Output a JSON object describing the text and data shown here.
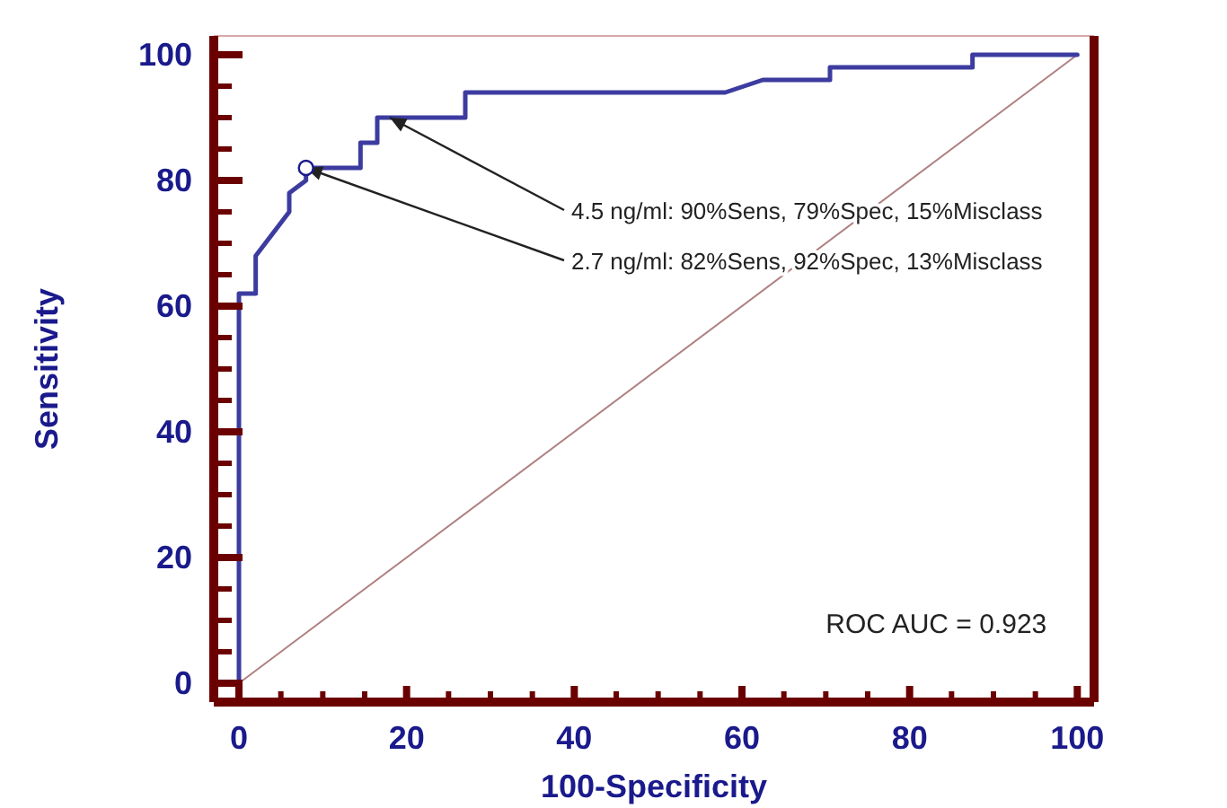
{
  "chart_data": {
    "type": "line",
    "xlabel": "100-Specificity",
    "ylabel": "Sensitivity",
    "xlim": [
      -3,
      102
    ],
    "ylim": [
      -3,
      103
    ],
    "xticks": [
      0,
      {
        "value": 5,
        "label": null
      },
      {
        "value": 10,
        "label": null
      },
      {
        "value": 15,
        "label": null
      },
      20,
      {
        "value": 25,
        "label": null
      },
      {
        "value": 30,
        "label": null
      },
      {
        "value": 35,
        "label": null
      },
      40,
      {
        "value": 45,
        "label": null
      },
      {
        "value": 50,
        "label": null
      },
      {
        "value": 55,
        "label": null
      },
      60,
      {
        "value": 65,
        "label": null
      },
      {
        "value": 70,
        "label": null
      },
      {
        "value": 75,
        "label": null
      },
      80,
      {
        "value": 85,
        "label": null
      },
      {
        "value": 90,
        "label": null
      },
      {
        "value": 95,
        "label": null
      },
      100
    ],
    "yticks": [
      0,
      {
        "value": 5,
        "label": null
      },
      {
        "value": 10,
        "label": null
      },
      {
        "value": 15,
        "label": null
      },
      20,
      {
        "value": 25,
        "label": null
      },
      {
        "value": 30,
        "label": null
      },
      {
        "value": 35,
        "label": null
      },
      40,
      {
        "value": 45,
        "label": null
      },
      {
        "value": 50,
        "label": null
      },
      {
        "value": 55,
        "label": null
      },
      60,
      {
        "value": 65,
        "label": null
      },
      {
        "value": 70,
        "label": null
      },
      {
        "value": 75,
        "label": null
      },
      80,
      {
        "value": 85,
        "label": null
      },
      {
        "value": 90,
        "label": null
      },
      {
        "value": 95,
        "label": null
      },
      100
    ],
    "grid": false,
    "marker": "none",
    "series": [
      {
        "color": "#3c3ca0",
        "line_style": "solid",
        "x": [
          0,
          0,
          2,
          2,
          6,
          6,
          8,
          8,
          14.5,
          14.5,
          16.5,
          16.5,
          27,
          27,
          58,
          62.5,
          70.5,
          70.5,
          87.5,
          87.5,
          100
        ],
        "values": [
          0,
          62,
          62,
          68,
          75,
          78,
          80,
          82,
          82,
          86,
          86,
          90,
          90,
          94,
          94,
          96,
          96,
          98,
          98,
          100,
          100
        ]
      },
      {
        "color": "#b08080",
        "line_style": "solid",
        "x": [
          0,
          100
        ],
        "values": [
          0,
          100
        ]
      }
    ],
    "annotations": [
      {
        "text": "4.5 ng/ml: 90%Sens, 79%Spec, 15%Misclass",
        "x": 18,
        "y": 90
      },
      {
        "text": "2.7 ng/ml: 82%Sens, 92%Spec, 13%Misclass",
        "x": 8,
        "y": 82
      },
      "ROC AUC = 0.923"
    ]
  }
}
